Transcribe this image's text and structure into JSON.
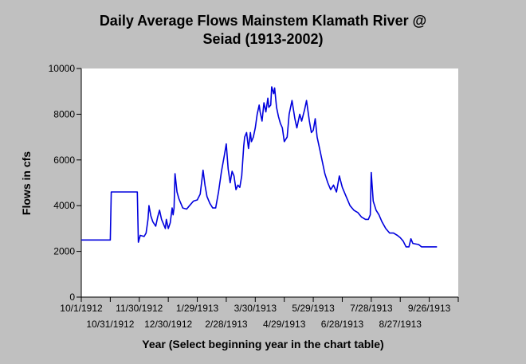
{
  "chart_data": {
    "type": "line",
    "title": "Daily Average Flows Mainstem Klamath River @ Seiad (1913-2002)",
    "title_lines": [
      "Daily Average Flows Mainstem Klamath River @",
      "Seiad (1913-2002)"
    ],
    "xlabel": "Year (Select beginning year in the chart table)",
    "ylabel": "Flows in cfs",
    "ylim": [
      0,
      10000
    ],
    "yticks": [
      0,
      2000,
      4000,
      6000,
      8000,
      10000
    ],
    "xlim": [
      "1912-10-01",
      "1913-10-26"
    ],
    "xticks": [
      "10/1/1912",
      "10/31/1912",
      "11/30/1912",
      "12/30/1912",
      "1/29/1913",
      "2/28/1913",
      "3/30/1913",
      "4/29/1913",
      "5/29/1913",
      "6/28/1913",
      "7/28/1913",
      "8/27/1913",
      "9/26/1913"
    ],
    "grid": false,
    "colors": {
      "line": "#0000dd",
      "plot_bg": "#ffffff",
      "page_bg": "#c0c0c0"
    },
    "series": [
      {
        "points": [
          [
            "1912-10-01",
            2500
          ],
          [
            "1912-10-31",
            2500
          ],
          [
            "1912-11-01",
            4600
          ],
          [
            "1912-11-28",
            4600
          ],
          [
            "1912-11-29",
            2400
          ],
          [
            "1912-12-01",
            2700
          ],
          [
            "1912-12-05",
            2650
          ],
          [
            "1912-12-07",
            2800
          ],
          [
            "1912-12-09",
            3400
          ],
          [
            "1912-12-10",
            4000
          ],
          [
            "1912-12-12",
            3550
          ],
          [
            "1912-12-14",
            3300
          ],
          [
            "1912-12-17",
            3100
          ],
          [
            "1912-12-19",
            3500
          ],
          [
            "1912-12-21",
            3800
          ],
          [
            "1912-12-23",
            3400
          ],
          [
            "1912-12-25",
            3200
          ],
          [
            "1912-12-27",
            3000
          ],
          [
            "1912-12-28",
            3400
          ],
          [
            "1912-12-30",
            3000
          ],
          [
            "1913-01-01",
            3250
          ],
          [
            "1913-01-03",
            3900
          ],
          [
            "1913-01-04",
            3600
          ],
          [
            "1913-01-05",
            3900
          ],
          [
            "1913-01-06",
            5400
          ],
          [
            "1913-01-08",
            4600
          ],
          [
            "1913-01-10",
            4300
          ],
          [
            "1913-01-12",
            4100
          ],
          [
            "1913-01-14",
            3900
          ],
          [
            "1913-01-18",
            3850
          ],
          [
            "1913-01-21",
            4000
          ],
          [
            "1913-01-25",
            4200
          ],
          [
            "1913-01-29",
            4250
          ],
          [
            "1913-02-01",
            4500
          ],
          [
            "1913-02-04",
            5550
          ],
          [
            "1913-02-06",
            4900
          ],
          [
            "1913-02-08",
            4400
          ],
          [
            "1913-02-11",
            4100
          ],
          [
            "1913-02-14",
            3900
          ],
          [
            "1913-02-17",
            3900
          ],
          [
            "1913-02-20",
            4600
          ],
          [
            "1913-02-23",
            5500
          ],
          [
            "1913-02-26",
            6200
          ],
          [
            "1913-02-28",
            6700
          ],
          [
            "1913-03-02",
            5600
          ],
          [
            "1913-03-04",
            5000
          ],
          [
            "1913-03-06",
            5500
          ],
          [
            "1913-03-08",
            5300
          ],
          [
            "1913-03-10",
            4700
          ],
          [
            "1913-03-12",
            4900
          ],
          [
            "1913-03-14",
            4800
          ],
          [
            "1913-03-16",
            5300
          ],
          [
            "1913-03-18",
            6600
          ],
          [
            "1913-03-19",
            7000
          ],
          [
            "1913-03-21",
            7200
          ],
          [
            "1913-03-23",
            6500
          ],
          [
            "1913-03-25",
            7200
          ],
          [
            "1913-03-26",
            6800
          ],
          [
            "1913-03-28",
            7000
          ],
          [
            "1913-03-30",
            7400
          ],
          [
            "1913-04-01",
            8000
          ],
          [
            "1913-04-03",
            8400
          ],
          [
            "1913-04-04",
            8100
          ],
          [
            "1913-04-06",
            7700
          ],
          [
            "1913-04-08",
            8500
          ],
          [
            "1913-04-10",
            8100
          ],
          [
            "1913-04-12",
            8700
          ],
          [
            "1913-04-13",
            8300
          ],
          [
            "1913-04-15",
            8400
          ],
          [
            "1913-04-16",
            9200
          ],
          [
            "1913-04-18",
            8900
          ],
          [
            "1913-04-19",
            9150
          ],
          [
            "1913-04-21",
            8300
          ],
          [
            "1913-04-23",
            7900
          ],
          [
            "1913-04-25",
            7600
          ],
          [
            "1913-04-27",
            7400
          ],
          [
            "1913-04-29",
            6800
          ],
          [
            "1913-05-02",
            7000
          ],
          [
            "1913-05-04",
            8000
          ],
          [
            "1913-05-07",
            8600
          ],
          [
            "1913-05-10",
            7800
          ],
          [
            "1913-05-12",
            7400
          ],
          [
            "1913-05-15",
            8000
          ],
          [
            "1913-05-17",
            7700
          ],
          [
            "1913-05-20",
            8200
          ],
          [
            "1913-05-22",
            8600
          ],
          [
            "1913-05-25",
            7700
          ],
          [
            "1913-05-27",
            7200
          ],
          [
            "1913-05-29",
            7300
          ],
          [
            "1913-05-31",
            7800
          ],
          [
            "1913-06-02",
            7000
          ],
          [
            "1913-06-05",
            6400
          ],
          [
            "1913-06-07",
            6000
          ],
          [
            "1913-06-10",
            5400
          ],
          [
            "1913-06-13",
            5000
          ],
          [
            "1913-06-16",
            4700
          ],
          [
            "1913-06-19",
            4900
          ],
          [
            "1913-06-22",
            4600
          ],
          [
            "1913-06-25",
            5300
          ],
          [
            "1913-06-28",
            4800
          ],
          [
            "1913-07-02",
            4400
          ],
          [
            "1913-07-06",
            4000
          ],
          [
            "1913-07-10",
            3800
          ],
          [
            "1913-07-14",
            3700
          ],
          [
            "1913-07-18",
            3500
          ],
          [
            "1913-07-22",
            3400
          ],
          [
            "1913-07-25",
            3400
          ],
          [
            "1913-07-27",
            3600
          ],
          [
            "1913-07-28",
            5450
          ],
          [
            "1913-07-30",
            4200
          ],
          [
            "1913-08-02",
            3800
          ],
          [
            "1913-08-05",
            3600
          ],
          [
            "1913-08-08",
            3300
          ],
          [
            "1913-08-12",
            3000
          ],
          [
            "1913-08-16",
            2800
          ],
          [
            "1913-08-20",
            2800
          ],
          [
            "1913-08-24",
            2700
          ],
          [
            "1913-08-27",
            2600
          ],
          [
            "1913-08-30",
            2450
          ],
          [
            "1913-09-02",
            2200
          ],
          [
            "1913-09-05",
            2200
          ],
          [
            "1913-09-07",
            2550
          ],
          [
            "1913-09-09",
            2350
          ],
          [
            "1913-09-15",
            2300
          ],
          [
            "1913-09-18",
            2200
          ],
          [
            "1913-09-26",
            2200
          ],
          [
            "1913-10-04",
            2200
          ]
        ]
      }
    ]
  }
}
